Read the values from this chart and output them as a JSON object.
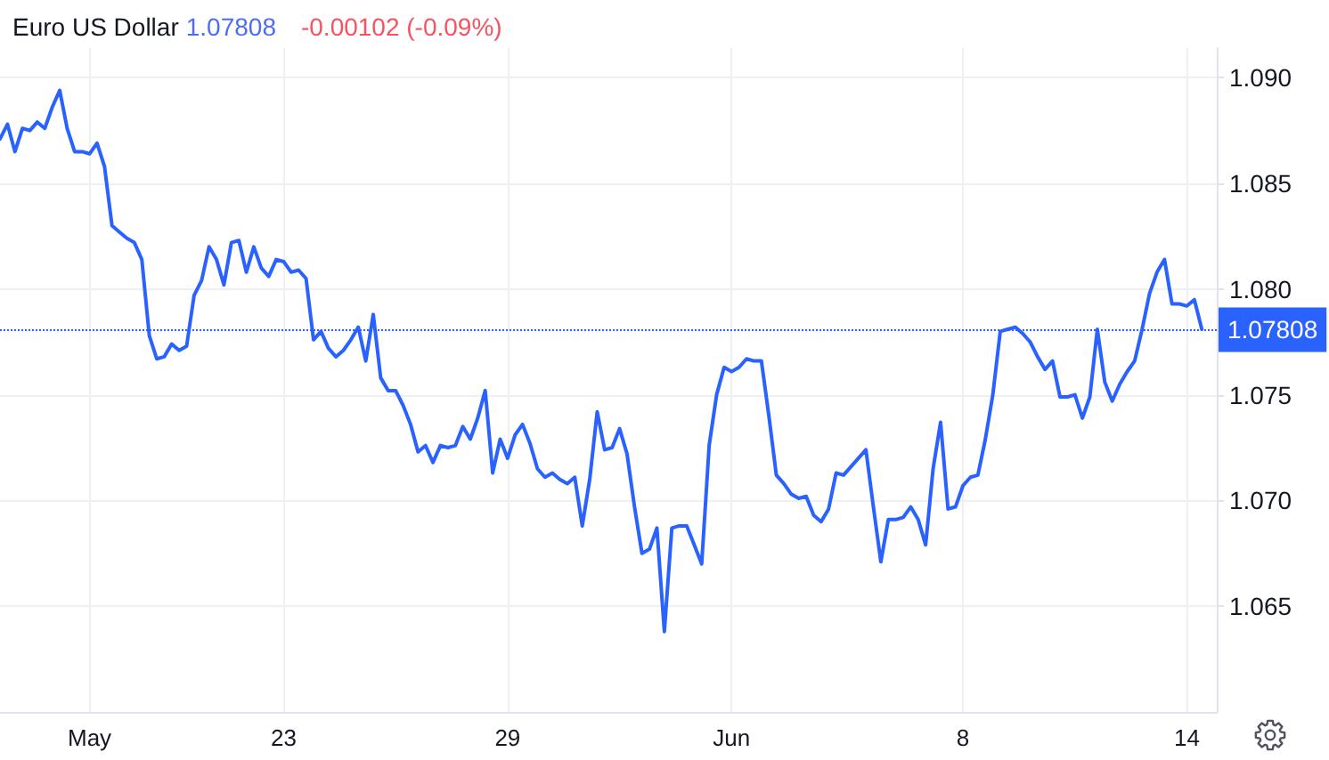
{
  "chart_data": {
    "type": "line",
    "title": "Euro US Dollar",
    "annotations": [
      "1.07808",
      "-0.00102 (-0.09%)"
    ],
    "categories": [
      null,
      null,
      null,
      null,
      null,
      null,
      null,
      null,
      null,
      null,
      null,
      null,
      "May",
      null,
      null,
      null,
      null,
      null,
      null,
      null,
      null,
      null,
      null,
      null,
      null,
      null,
      null,
      null,
      null,
      null,
      null,
      null,
      null,
      null,
      null,
      null,
      null,
      null,
      "23",
      null,
      null,
      null,
      null,
      null,
      null,
      null,
      null,
      null,
      null,
      null,
      null,
      null,
      null,
      null,
      null,
      null,
      null,
      null,
      null,
      null,
      null,
      null,
      null,
      null,
      null,
      null,
      null,
      null,
      "29",
      null,
      null,
      null,
      null,
      null,
      null,
      null,
      null,
      null,
      null,
      null,
      null,
      null,
      null,
      null,
      null,
      null,
      null,
      null,
      null,
      null,
      null,
      null,
      null,
      null,
      null,
      null,
      null,
      null,
      "Jun",
      null,
      null,
      null,
      null,
      null,
      null,
      null,
      null,
      null,
      null,
      null,
      null,
      null,
      null,
      null,
      null,
      null,
      null,
      null,
      null,
      null,
      null,
      null,
      null,
      null,
      null,
      null,
      null,
      null,
      null,
      "8",
      null,
      null,
      null,
      null,
      null,
      null,
      null,
      null,
      null,
      null,
      null,
      null,
      null,
      null,
      null,
      null,
      null,
      null,
      null,
      null,
      null,
      null,
      null,
      null,
      null,
      null,
      null,
      null,
      null,
      "14",
      null,
      null,
      null,
      null
    ],
    "series": [
      {
        "color": "#2962ff",
        "values": [
          1.0871,
          1.0878,
          1.0865,
          1.0876,
          1.0875,
          1.0879,
          1.0876,
          1.0886,
          1.0894,
          1.0876,
          1.0865,
          1.0865,
          1.0864,
          1.0869,
          1.0858,
          1.083,
          1.0827,
          1.0824,
          1.0822,
          1.0814,
          1.0778,
          1.0767,
          1.0768,
          1.0774,
          1.0771,
          1.0773,
          1.0797,
          1.0804,
          1.082,
          1.0814,
          1.0802,
          1.0822,
          1.0823,
          1.0808,
          1.082,
          1.081,
          1.0806,
          1.0814,
          1.0813,
          1.0808,
          1.0809,
          1.0805,
          1.0776,
          1.078,
          1.0772,
          1.0768,
          1.0771,
          1.0776,
          1.0782,
          1.0766,
          1.0788,
          1.0758,
          1.0752,
          1.0752,
          1.0745,
          1.0736,
          1.0723,
          1.0726,
          1.0718,
          1.0726,
          1.0725,
          1.0726,
          1.0735,
          1.0729,
          1.0739,
          1.0752,
          1.0713,
          1.0729,
          1.072,
          1.0731,
          1.0736,
          1.0727,
          1.0715,
          1.0711,
          1.0713,
          1.071,
          1.0708,
          1.0711,
          1.0688,
          1.071,
          1.0742,
          1.0724,
          1.0725,
          1.0734,
          1.0722,
          1.0697,
          1.0675,
          1.0677,
          1.0687,
          1.0638,
          1.0687,
          1.0688,
          1.0688,
          1.0679,
          1.067,
          1.0726,
          1.075,
          1.0763,
          1.0761,
          1.0763,
          1.0767,
          1.0766,
          1.0766,
          1.074,
          1.0712,
          1.0708,
          1.0703,
          1.0701,
          1.0702,
          1.0693,
          1.069,
          1.0696,
          1.0713,
          1.0712,
          1.0716,
          1.072,
          1.0724,
          1.0697,
          1.0671,
          1.0691,
          1.0691,
          1.0692,
          1.0697,
          1.0691,
          1.0679,
          1.0715,
          1.0737,
          1.0696,
          1.0697,
          1.0707,
          1.0711,
          1.0712,
          1.0729,
          1.075,
          1.078,
          1.0781,
          1.0782,
          1.0779,
          1.0775,
          1.0768,
          1.0762,
          1.0766,
          1.0749,
          1.0749,
          1.075,
          1.0739,
          1.0749,
          1.0781,
          1.0756,
          1.0747,
          1.0755,
          1.0761,
          1.0766,
          1.0781,
          1.0798,
          1.0808,
          1.0814,
          1.0793,
          1.0793,
          1.0792,
          1.0795,
          1.0781,
          null,
          null
        ]
      }
    ],
    "ylim": [
      1.06,
      1.0914
    ],
    "yticks": [
      1.065,
      {
        "value": 1.07,
        "label": "1.070"
      },
      1.075,
      {
        "value": 1.08,
        "label": "1.080"
      },
      1.085,
      {
        "value": 1.09,
        "label": "1.090"
      }
    ],
    "ref_lines": [
      {
        "axis": "y",
        "value": 1.07808,
        "label": "1.07808",
        "color": "#2962ff",
        "line_style": "dotted"
      }
    ],
    "grid": true,
    "marker": "none"
  }
}
